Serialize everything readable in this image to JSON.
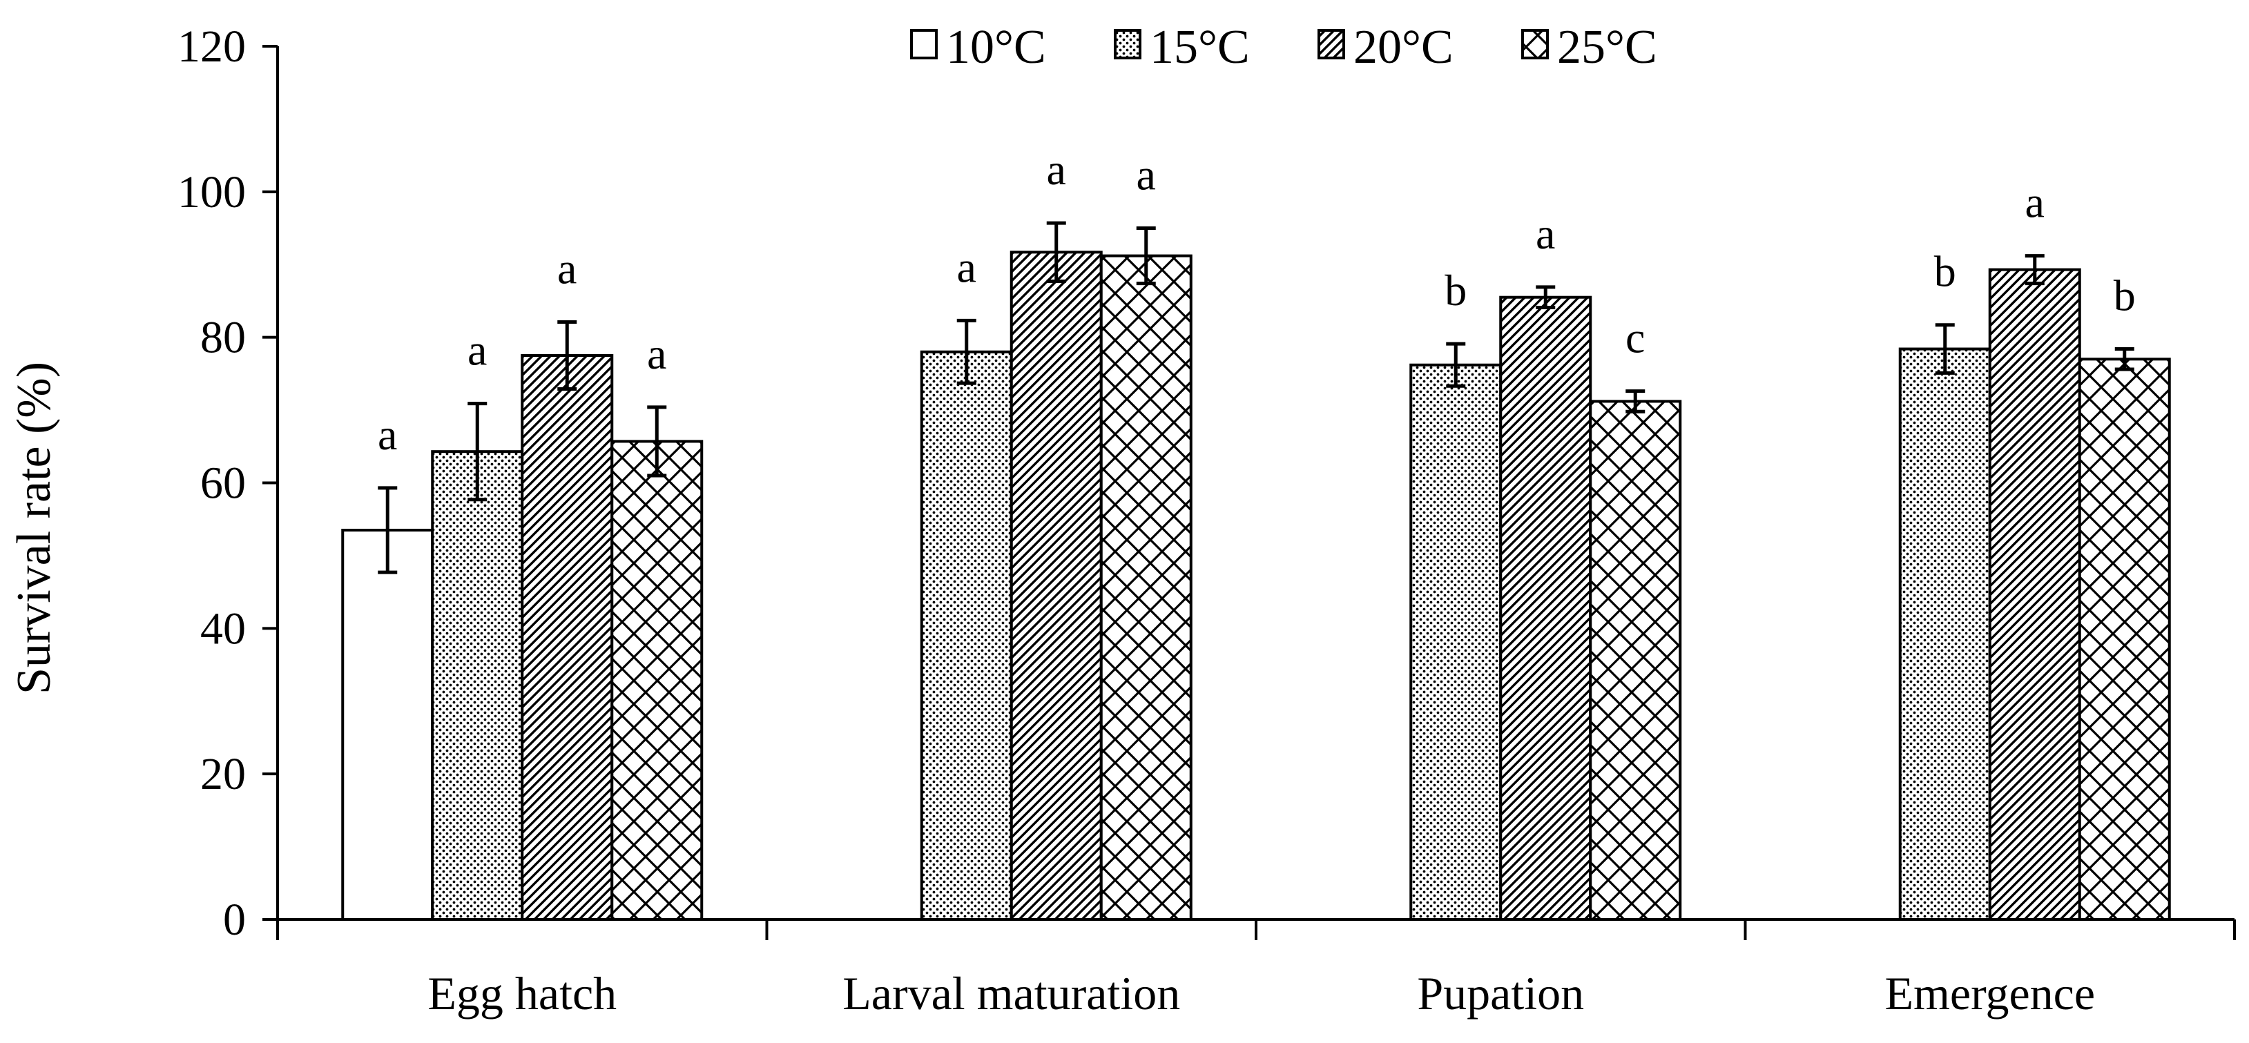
{
  "chart_data": {
    "type": "bar",
    "title": "",
    "xlabel": "",
    "ylabel": "Survival rate (%)",
    "ylim": [
      0,
      120
    ],
    "yticks": [
      0,
      20,
      40,
      60,
      80,
      100,
      120
    ],
    "categories": [
      "Egg hatch",
      "Larval maturation",
      "Pupation",
      "Emergence"
    ],
    "legend_position": "top-center",
    "series": [
      {
        "name": "10°C",
        "pattern": "empty",
        "values": [
          53.5,
          null,
          null,
          null
        ],
        "errors": [
          5.8,
          null,
          null,
          null
        ],
        "labels": [
          "a",
          "",
          "",
          ""
        ]
      },
      {
        "name": "15°C",
        "pattern": "dots",
        "values": [
          64.3,
          78,
          76.2,
          78.4
        ],
        "errors": [
          6.6,
          4.3,
          2.9,
          3.3
        ],
        "labels": [
          "a",
          "a",
          "b",
          "b"
        ]
      },
      {
        "name": "20°C",
        "pattern": "diagonal",
        "values": [
          77.5,
          91.7,
          85.5,
          89.3
        ],
        "errors": [
          4.6,
          4.0,
          1.4,
          1.9
        ],
        "labels": [
          "a",
          "a",
          "a",
          "a"
        ]
      },
      {
        "name": "25°C",
        "pattern": "crosshatch",
        "values": [
          65.7,
          91.2,
          71.2,
          77
        ],
        "errors": [
          4.7,
          3.8,
          1.4,
          1.4
        ],
        "labels": [
          "a",
          "a",
          "c",
          "b"
        ]
      }
    ],
    "colors": {
      "stroke": "#000000",
      "fill": "#ffffff"
    }
  }
}
